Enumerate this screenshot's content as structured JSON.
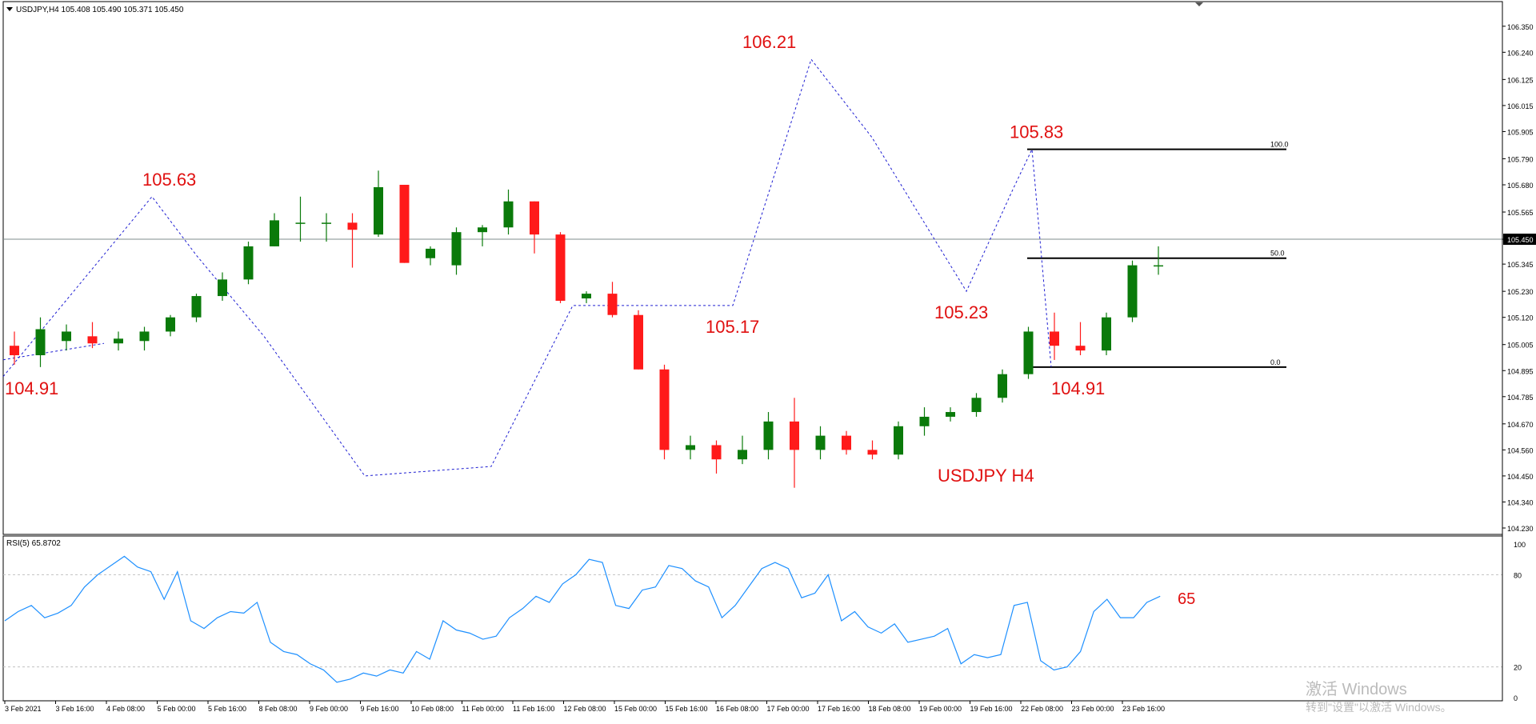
{
  "price_panel": {
    "header": "USDJPY,H4  105.408 105.490 105.371 105.450",
    "watermark": "USDJPY H4",
    "current_price": "105.450",
    "y_ticks": [
      "106.350",
      "106.240",
      "106.125",
      "106.015",
      "105.905",
      "105.790",
      "105.680",
      "105.565",
      "105.450",
      "105.345",
      "105.230",
      "105.120",
      "105.005",
      "104.895",
      "104.785",
      "104.670",
      "104.560",
      "104.450",
      "104.340",
      "104.230"
    ]
  },
  "rsi_panel": {
    "header": "RSI(5) 65.8702",
    "y_ticks": [
      "100",
      "80",
      "20",
      "0"
    ],
    "level_label": "65"
  },
  "time_axis": [
    "3 Feb 2021",
    "3 Feb 16:00",
    "4 Feb 08:00",
    "5 Feb 00:00",
    "5 Feb 16:00",
    "8 Feb 08:00",
    "9 Feb 00:00",
    "9 Feb 16:00",
    "10 Feb 08:00",
    "11 Feb 00:00",
    "11 Feb 16:00",
    "12 Feb 08:00",
    "15 Feb 00:00",
    "15 Feb 16:00",
    "16 Feb 08:00",
    "17 Feb 00:00",
    "17 Feb 16:00",
    "18 Feb 08:00",
    "19 Feb 00:00",
    "19 Feb 16:00",
    "22 Feb 08:00",
    "23 Feb 00:00",
    "23 Feb 16:00"
  ],
  "annotations": [
    {
      "text": "104.91",
      "bar": 0,
      "price": 104.91,
      "pos": "below"
    },
    {
      "text": "105.63",
      "bar": 12,
      "price": 105.63,
      "pos": "above"
    },
    {
      "text": "106.21",
      "bar": 33,
      "price": 106.21,
      "pos": "above"
    },
    {
      "text": "105.17",
      "bar": 31,
      "price": 105.17,
      "pos": "below"
    },
    {
      "text": "105.23",
      "bar": 41,
      "price": 105.23,
      "pos": "below"
    },
    {
      "text": "105.83",
      "bar": 45,
      "price": 105.83,
      "pos": "above"
    },
    {
      "text": "104.91",
      "bar": 47,
      "price": 104.91,
      "pos": "below"
    }
  ],
  "fibonacci": {
    "levels": [
      {
        "label": "100.0",
        "price": 105.83
      },
      {
        "label": "50.0",
        "price": 105.37
      },
      {
        "label": "0.0",
        "price": 104.91
      }
    ]
  },
  "watermark_os": {
    "line1": "激活 Windows",
    "line2": "转到\"设置\"以激活 Windows。"
  },
  "colors": {
    "bull": "#0a7a0a",
    "bear": "#ff1a1a",
    "rsi_line": "#1e90ff",
    "zigzag": "#1e1ed2",
    "annotation": "#e01010",
    "price_line": "#7f8c8d"
  },
  "chart_data": {
    "type": "candlestick",
    "symbol": "USDJPY",
    "timeframe": "H4",
    "ylim": [
      104.23,
      106.4
    ],
    "candles": [
      {
        "o": 105.0,
        "h": 105.06,
        "l": 104.92,
        "c": 104.96
      },
      {
        "o": 104.96,
        "h": 105.12,
        "l": 104.91,
        "c": 105.07
      },
      {
        "o": 105.02,
        "h": 105.09,
        "l": 104.98,
        "c": 105.06
      },
      {
        "o": 105.04,
        "h": 105.1,
        "l": 104.99,
        "c": 105.01
      },
      {
        "o": 105.01,
        "h": 105.06,
        "l": 104.98,
        "c": 105.03
      },
      {
        "o": 105.02,
        "h": 105.08,
        "l": 104.98,
        "c": 105.06
      },
      {
        "o": 105.06,
        "h": 105.13,
        "l": 105.04,
        "c": 105.12
      },
      {
        "o": 105.12,
        "h": 105.22,
        "l": 105.1,
        "c": 105.21
      },
      {
        "o": 105.21,
        "h": 105.31,
        "l": 105.19,
        "c": 105.28
      },
      {
        "o": 105.28,
        "h": 105.44,
        "l": 105.26,
        "c": 105.42
      },
      {
        "o": 105.42,
        "h": 105.56,
        "l": 105.42,
        "c": 105.53
      },
      {
        "o": 105.52,
        "h": 105.63,
        "l": 105.44,
        "c": 105.52
      },
      {
        "o": 105.52,
        "h": 105.56,
        "l": 105.44,
        "c": 105.52
      },
      {
        "o": 105.52,
        "h": 105.56,
        "l": 105.33,
        "c": 105.49
      },
      {
        "o": 105.47,
        "h": 105.74,
        "l": 105.46,
        "c": 105.67
      },
      {
        "o": 105.68,
        "h": 105.68,
        "l": 105.35,
        "c": 105.35
      },
      {
        "o": 105.37,
        "h": 105.42,
        "l": 105.34,
        "c": 105.41
      },
      {
        "o": 105.34,
        "h": 105.5,
        "l": 105.3,
        "c": 105.48
      },
      {
        "o": 105.48,
        "h": 105.51,
        "l": 105.42,
        "c": 105.5
      },
      {
        "o": 105.5,
        "h": 105.66,
        "l": 105.47,
        "c": 105.61
      },
      {
        "o": 105.61,
        "h": 105.61,
        "l": 105.39,
        "c": 105.47
      },
      {
        "o": 105.47,
        "h": 105.48,
        "l": 105.18,
        "c": 105.19
      },
      {
        "o": 105.2,
        "h": 105.23,
        "l": 105.18,
        "c": 105.22
      },
      {
        "o": 105.22,
        "h": 105.27,
        "l": 105.12,
        "c": 105.13
      },
      {
        "o": 105.13,
        "h": 105.15,
        "l": 104.9,
        "c": 104.9
      },
      {
        "o": 104.9,
        "h": 104.92,
        "l": 104.52,
        "c": 104.56
      }
    ],
    "series": [
      {
        "name": "RSI(5)",
        "values": [
          50,
          56,
          60,
          52,
          55,
          60,
          72,
          80,
          86,
          92,
          85,
          82,
          64,
          82,
          50,
          45,
          52,
          56,
          55,
          62,
          36,
          30,
          28,
          22,
          18,
          10,
          12,
          16
        ]
      }
    ]
  }
}
